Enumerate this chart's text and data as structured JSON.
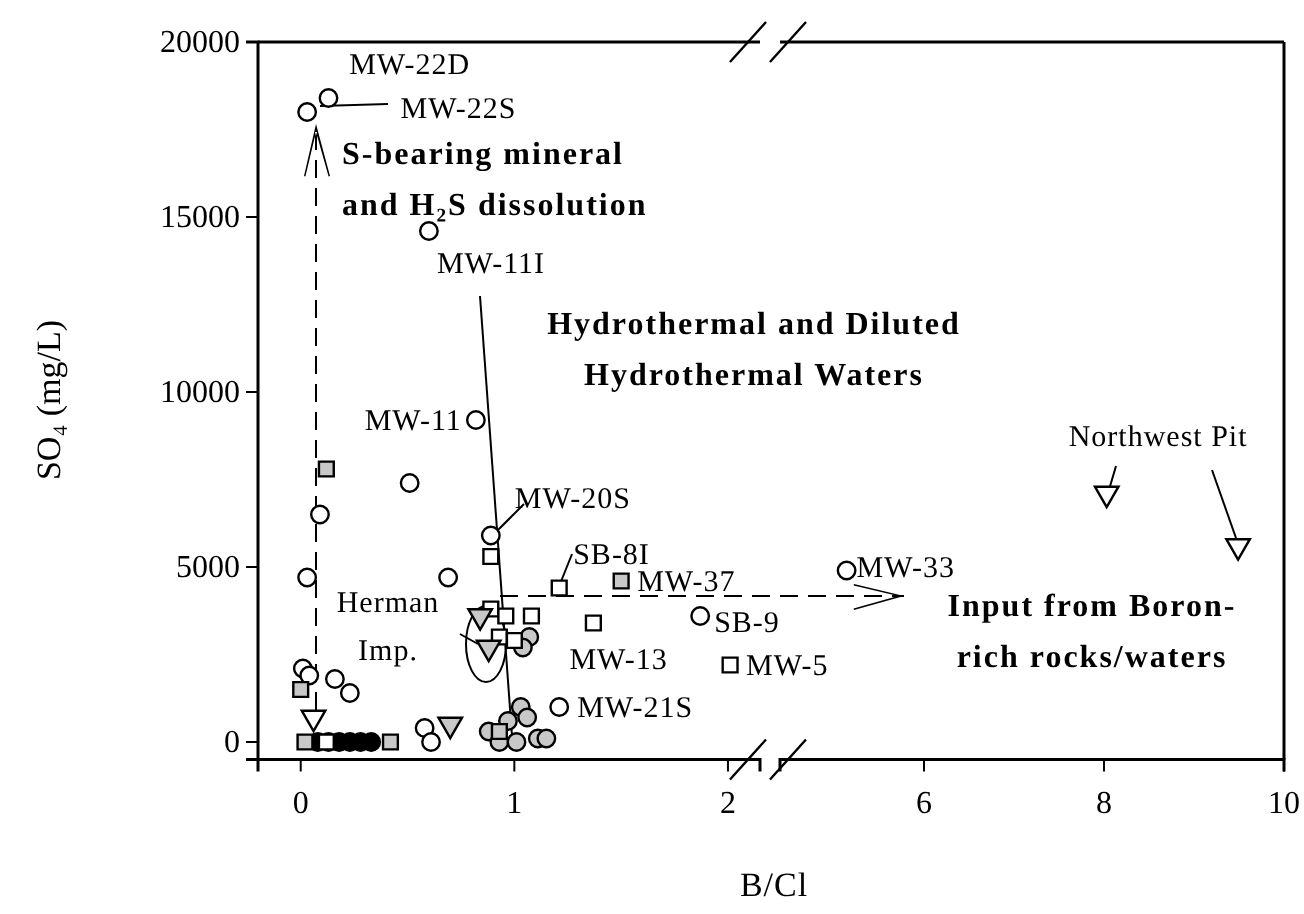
{
  "chart_data": [
    {
      "type": "scatter",
      "xlabel": "B/Cl",
      "ylabel": "SO₄ (mg/L)",
      "xlim": [
        -0.2,
        2.15
      ],
      "xticks": [
        0,
        1,
        2
      ],
      "ylim": [
        -500,
        20000
      ],
      "yticks": [
        0,
        5000,
        10000,
        15000,
        20000
      ],
      "series": [
        {
          "marker": "circle",
          "color": "#ffffff",
          "x": [
            0.03,
            0.13,
            0.6,
            0.82,
            0.51,
            0.09,
            0.03,
            0.69,
            0.89,
            0.01,
            0.04,
            0.16,
            0.23,
            0.58,
            0.61,
            1.87,
            1.21
          ],
          "values": [
            18000,
            18400,
            14600,
            9200,
            7400,
            6500,
            4700,
            4700,
            5900,
            2100,
            1900,
            1800,
            1400,
            400,
            0,
            3600,
            1000
          ]
        },
        {
          "marker": "circle",
          "color": "#c8c8c8",
          "x": [
            0.88,
            0.97,
            1.03,
            1.06,
            0.93,
            1.01,
            1.11,
            1.15,
            1.07,
            1.04
          ],
          "values": [
            300,
            600,
            1000,
            700,
            0,
            0,
            100,
            100,
            3000,
            2700
          ]
        },
        {
          "marker": "circle",
          "color": "#000000",
          "x": [
            0.08,
            0.13,
            0.18,
            0.23,
            0.28,
            0.33
          ],
          "values": [
            0,
            0,
            0,
            0,
            0,
            0
          ]
        },
        {
          "marker": "square",
          "color": "#ffffff",
          "x": [
            0.89,
            1.21,
            1.37,
            2.01,
            0.89,
            0.96,
            1.08,
            0.93,
            1.0,
            0.12
          ],
          "values": [
            5300,
            4400,
            3400,
            2200,
            3800,
            3600,
            3600,
            3000,
            2900,
            0
          ]
        },
        {
          "marker": "square",
          "color": "#c8c8c8",
          "x": [
            0.12,
            0.0,
            1.5,
            0.02,
            0.42,
            0.93
          ],
          "values": [
            7800,
            1500,
            4600,
            0,
            0,
            300
          ]
        },
        {
          "marker": "triangle",
          "color": "#ffffff",
          "x": [
            0.06
          ],
          "values": [
            700
          ]
        },
        {
          "marker": "triangle",
          "color": "#c8c8c8",
          "x": [
            0.7,
            0.84,
            0.88
          ],
          "values": [
            500,
            3600,
            2700
          ]
        }
      ],
      "annotations": [
        {
          "text": "MW-22D",
          "x": 0.03,
          "y": 18000
        },
        {
          "text": "MW-22S",
          "x": 0.13,
          "y": 18400
        },
        "S-bearing mineral\nand H₂S dissolution",
        {
          "text": "MW-11I",
          "x": 0.6,
          "y": 14600
        },
        "Hydrothermal and Diluted\nHydrothermal Waters",
        {
          "text": "MW-11",
          "x": 0.82,
          "y": 9200
        },
        {
          "text": "MW-20S",
          "x": 0.89,
          "y": 5900
        },
        {
          "text": "SB-8I",
          "x": 1.21,
          "y": 4400
        },
        {
          "text": "MW-37",
          "x": 1.5,
          "y": 4600
        },
        "Herman\nImp.",
        {
          "text": "SB-9",
          "x": 1.87,
          "y": 3600
        },
        {
          "text": "MW-13",
          "x": 1.37,
          "y": 3400
        },
        {
          "text": "MW-5",
          "x": 2.01,
          "y": 2200
        },
        {
          "text": "MW-21S",
          "x": 1.21,
          "y": 1000
        }
      ]
    },
    {
      "type": "scatter",
      "xlim": [
        4.4,
        10
      ],
      "xticks": [
        6,
        8,
        10
      ],
      "ylim": [
        -500,
        20000
      ],
      "tick_labels": "x",
      "series": [
        {
          "marker": "circle",
          "color": "#ffffff",
          "x": [
            5.14
          ],
          "values": [
            4900
          ]
        },
        {
          "marker": "triangle",
          "color": "#ffffff",
          "x": [
            8.03,
            9.49
          ],
          "values": [
            7100,
            5600
          ]
        }
      ],
      "annotations": [
        {
          "text": "MW-33",
          "x": 5.14,
          "y": 4900
        },
        {
          "text": "Northwest Pit",
          "x": 9.49,
          "y": 5600
        },
        "Input from Boron-\nrich rocks/waters"
      ]
    }
  ]
}
